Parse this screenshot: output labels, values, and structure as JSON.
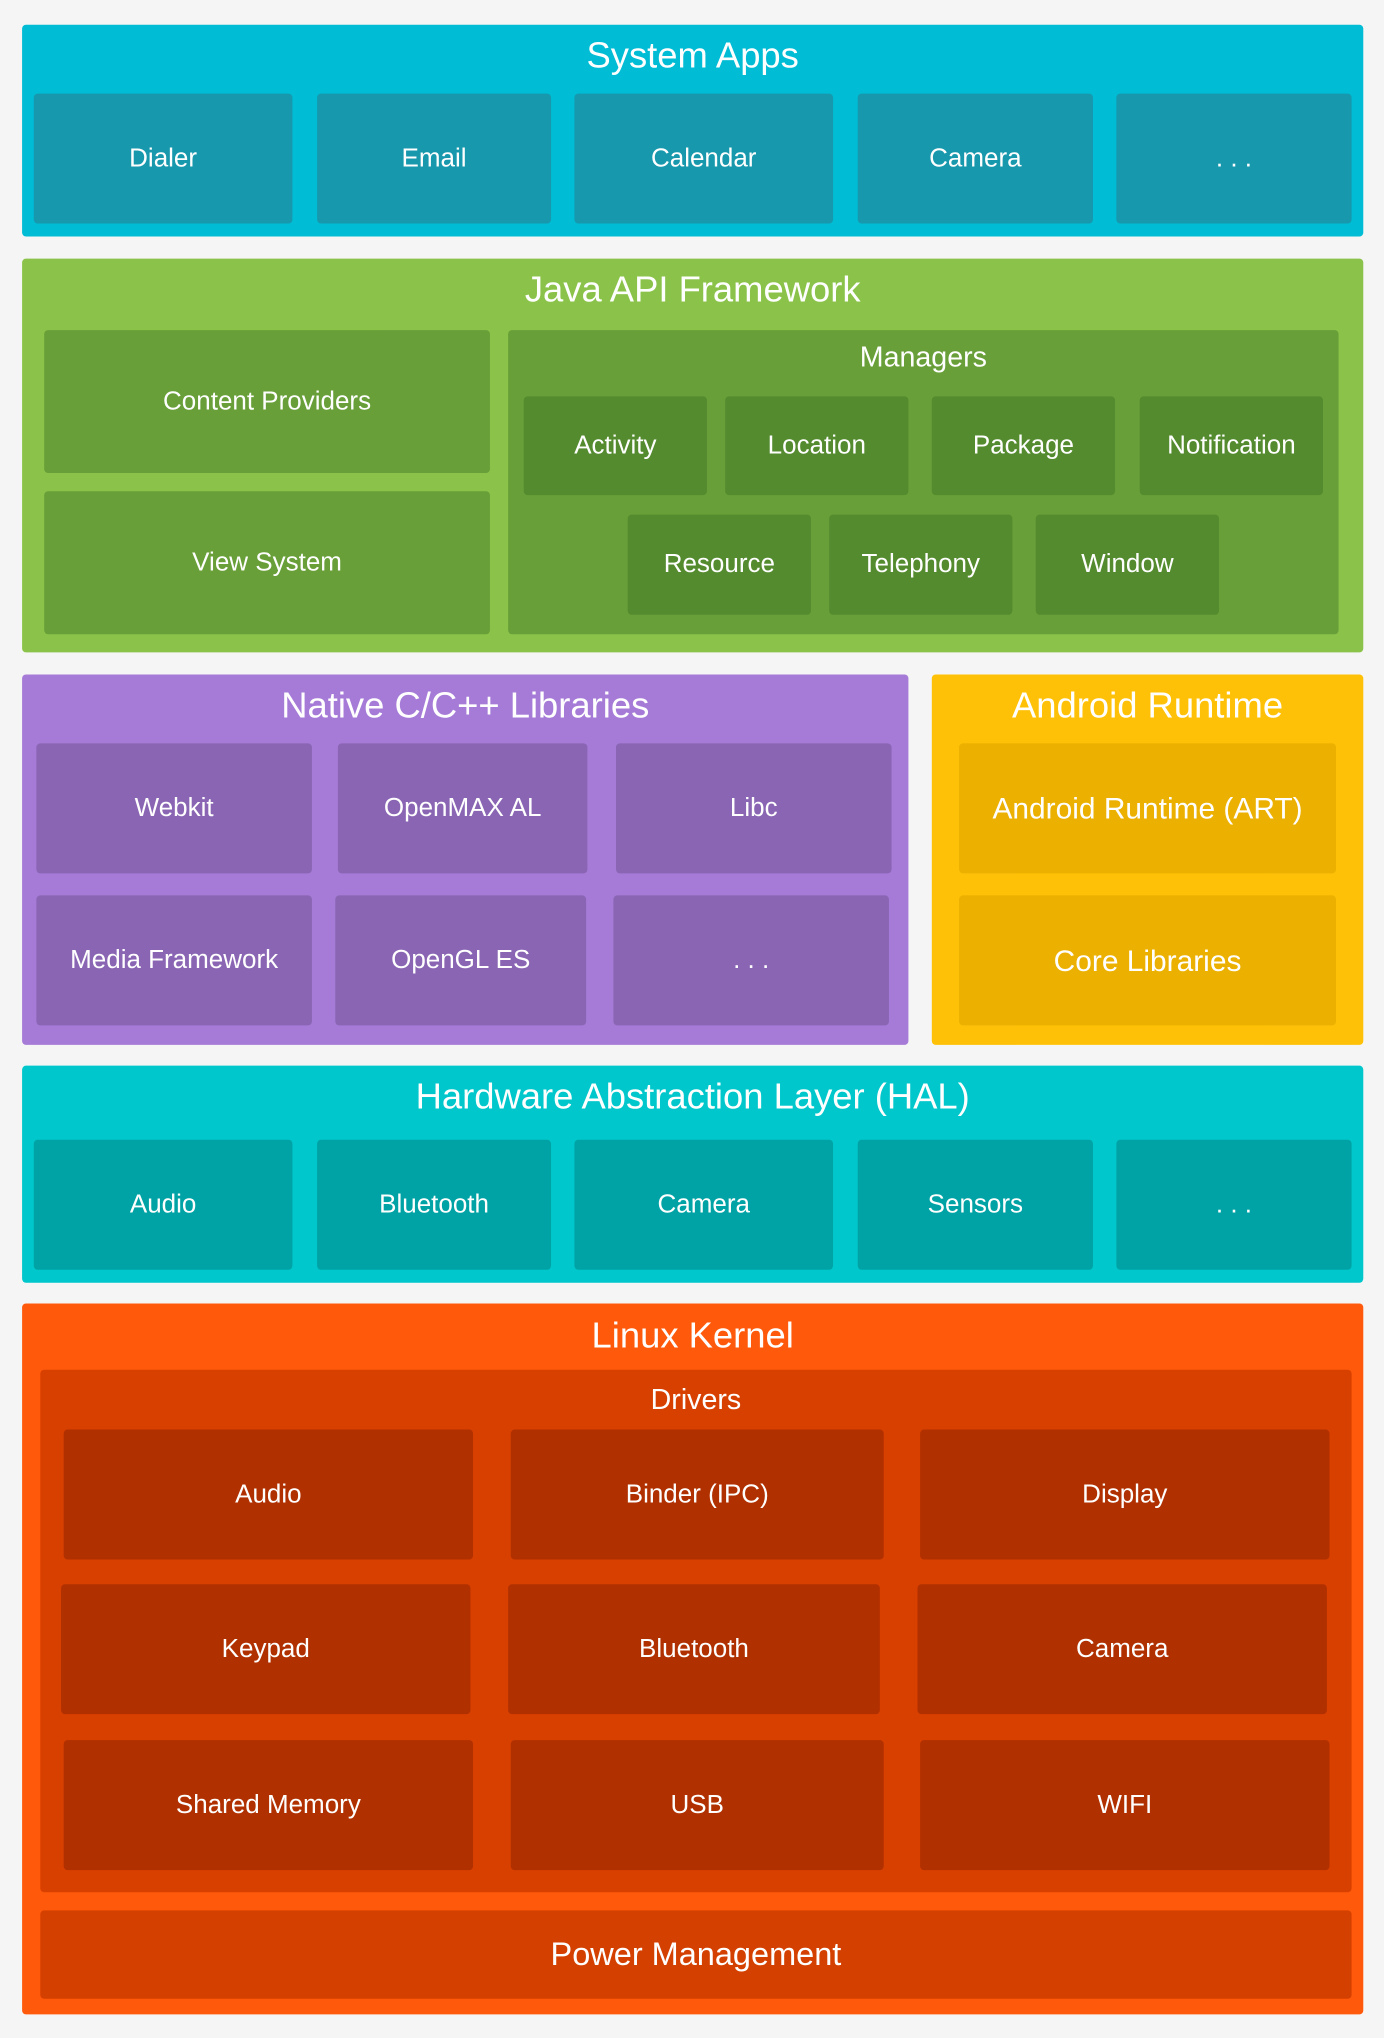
{
  "system_apps": {
    "title": "System Apps",
    "items": [
      "Dialer",
      "Email",
      "Calendar",
      "Camera",
      ". . ."
    ],
    "color": "#00bcd4"
  },
  "java_api": {
    "title": "Java API Framework",
    "content_providers": "Content Providers",
    "view_system": "View System",
    "managers": {
      "title": "Managers",
      "items": [
        "Activity",
        "Location",
        "Package",
        "Notification",
        "Resource",
        "Telephony",
        "Window"
      ]
    },
    "color": "#8bc34a"
  },
  "native_libs": {
    "title": "Native C/C++ Libraries",
    "items": [
      "Webkit",
      "OpenMAX AL",
      "Libc",
      "Media Framework",
      "OpenGL ES",
      ". . ."
    ],
    "color": "#a67bd7"
  },
  "android_runtime": {
    "title": "Android Runtime",
    "items": [
      "Android Runtime (ART)",
      "Core Libraries"
    ],
    "color": "#ffc107"
  },
  "hal": {
    "title": "Hardware Abstraction Layer (HAL)",
    "items": [
      "Audio",
      "Bluetooth",
      "Camera",
      "Sensors",
      ". . ."
    ],
    "color": "#00c7cb"
  },
  "linux_kernel": {
    "title": "Linux Kernel",
    "drivers": {
      "title": "Drivers",
      "items": [
        "Audio",
        "Binder (IPC)",
        "Display",
        "Keypad",
        "Bluetooth",
        "Camera",
        "Shared Memory",
        "USB",
        "WIFI"
      ]
    },
    "power_management": "Power Management",
    "color": "#ff5a0b"
  }
}
